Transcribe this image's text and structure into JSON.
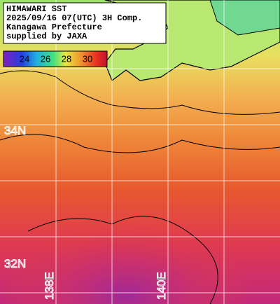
{
  "header": {
    "lines": [
      "HIMAWARI SST",
      "2025/09/16 07(UTC) 3H Comp.",
      "Kanagawa Prefecture",
      "supplied by JAXA"
    ]
  },
  "colorbar": {
    "ticks": [
      24,
      26,
      28,
      30
    ]
  },
  "grid_labels": {
    "latitudes": [
      "34N",
      "32N"
    ],
    "longitudes": [
      "138E",
      "140E"
    ]
  }
}
